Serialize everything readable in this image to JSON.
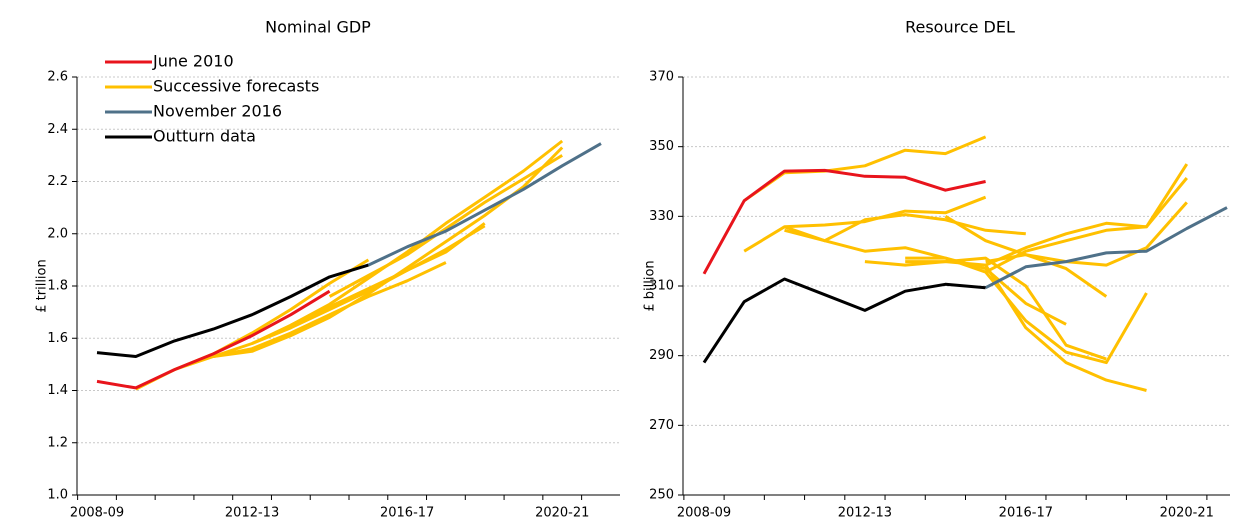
{
  "chart_data": [
    {
      "type": "line",
      "title": "Nominal GDP",
      "y_label": "£ trillion",
      "categories": [
        "2008-09",
        null,
        null,
        null,
        "2012-13",
        null,
        null,
        null,
        "2016-17",
        null,
        null,
        null,
        "2020-21",
        null
      ],
      "ylim": [
        1.0,
        2.6
      ],
      "yticks": [
        {
          "value": 1.0,
          "label": "1.0"
        },
        1.2,
        1.4,
        1.6,
        1.8,
        {
          "value": 2.0,
          "label": "2.0"
        },
        2.2,
        2.4,
        2.6
      ],
      "grid": true,
      "legend": "upper left",
      "series": [
        {
          "name": "June 2010",
          "color": "#e8141c",
          "values": [
            1.435,
            1.41,
            1.48,
            1.54,
            1.61,
            1.69,
            1.78,
            null,
            null,
            null,
            null,
            null,
            null,
            null
          ]
        },
        {
          "name": "Successive forecasts",
          "color": "#ffc000",
          "lines": [
            [
              null,
              1.405,
              1.48,
              1.54,
              1.62,
              1.71,
              1.81,
              1.9,
              null,
              null,
              null,
              null,
              null,
              null
            ],
            [
              null,
              null,
              1.48,
              1.53,
              1.58,
              1.65,
              1.73,
              1.83,
              1.93,
              2.04,
              2.14,
              2.24,
              2.355,
              null
            ],
            [
              null,
              null,
              null,
              1.53,
              1.55,
              1.61,
              1.68,
              1.77,
              1.87,
              1.97,
              2.07,
              2.18,
              2.33,
              null
            ],
            [
              null,
              null,
              null,
              null,
              1.58,
              1.64,
              1.71,
              1.78,
              1.86,
              1.94,
              2.03,
              null,
              null,
              null
            ],
            [
              null,
              null,
              null,
              null,
              null,
              1.65,
              1.72,
              1.79,
              1.86,
              1.93,
              2.04,
              null,
              null,
              null
            ],
            [
              null,
              null,
              null,
              null,
              null,
              null,
              1.76,
              1.84,
              1.92,
              2.02,
              2.12,
              2.21,
              2.3,
              null
            ],
            [
              null,
              null,
              null,
              1.53,
              1.56,
              1.62,
              1.69,
              1.76,
              1.82,
              1.89,
              null,
              null,
              null,
              null
            ]
          ]
        },
        {
          "name": "November 2016",
          "color": "#4f7189",
          "values": [
            null,
            null,
            null,
            null,
            null,
            null,
            null,
            1.88,
            1.95,
            2.01,
            2.09,
            2.17,
            2.26,
            2.345
          ]
        },
        {
          "name": "Outturn data",
          "color": "#000000",
          "values": [
            1.545,
            1.53,
            1.59,
            1.635,
            1.69,
            1.76,
            1.835,
            1.88,
            null,
            null,
            null,
            null,
            null,
            null
          ]
        }
      ]
    },
    {
      "type": "line",
      "title": "Resource DEL",
      "y_label": "£ billion",
      "categories": [
        "2008-09",
        null,
        null,
        null,
        "2012-13",
        null,
        null,
        null,
        "2016-17",
        null,
        null,
        null,
        "2020-21",
        null
      ],
      "ylim": [
        250,
        370
      ],
      "yticks": [
        250,
        270,
        290,
        310,
        330,
        350,
        370
      ],
      "grid": true,
      "series": [
        {
          "color": "#e8141c",
          "values": [
            313.5,
            334.5,
            343,
            343.2,
            341.5,
            341.2,
            337.5,
            340,
            null,
            null,
            null,
            null,
            null,
            null
          ]
        },
        {
          "color": "#ffc000",
          "lines": [
            [
              null,
              334.5,
              342.5,
              343,
              344.5,
              349,
              348,
              352.8,
              null,
              null,
              null,
              null,
              null,
              null
            ],
            [
              null,
              320,
              327,
              327.5,
              328.5,
              331.5,
              331,
              335.5,
              null,
              null,
              null,
              null,
              null,
              null
            ],
            [
              null,
              null,
              327,
              323,
              329,
              330.5,
              329,
              326,
              325,
              null,
              null,
              null,
              null,
              null
            ],
            [
              null,
              null,
              326,
              323,
              320,
              321,
              318,
              315,
              305,
              299,
              null,
              null,
              null,
              null
            ],
            [
              null,
              null,
              null,
              null,
              317,
              316,
              317,
              318,
              310,
              293,
              289,
              null,
              null,
              null
            ],
            [
              null,
              null,
              null,
              null,
              null,
              318,
              318,
              314,
              300,
              291,
              288,
              308,
              null,
              null
            ],
            [
              null,
              null,
              null,
              null,
              null,
              317,
              317,
              316,
              298,
              288,
              283,
              280,
              null,
              null
            ],
            [
              null,
              null,
              null,
              null,
              null,
              null,
              null,
              314,
              320,
              323,
              326,
              327,
              345,
              null
            ],
            [
              null,
              null,
              null,
              null,
              null,
              null,
              null,
              316,
              321,
              325,
              328,
              327,
              341,
              null
            ],
            [
              null,
              null,
              null,
              null,
              null,
              null,
              null,
              317,
              319,
              317,
              316,
              321,
              334,
              null
            ],
            [
              null,
              null,
              null,
              null,
              null,
              null,
              330,
              323,
              319,
              315,
              307,
              null,
              null,
              null
            ]
          ]
        },
        {
          "color": "#4f7189",
          "values": [
            null,
            null,
            null,
            null,
            null,
            null,
            null,
            309.5,
            315.5,
            317,
            319.5,
            320,
            326.5,
            332.5
          ]
        },
        {
          "color": "#000000",
          "values": [
            288,
            305.5,
            312,
            307.5,
            303,
            308.5,
            310.5,
            309.5,
            null,
            null,
            null,
            null,
            null,
            null
          ]
        }
      ]
    }
  ]
}
